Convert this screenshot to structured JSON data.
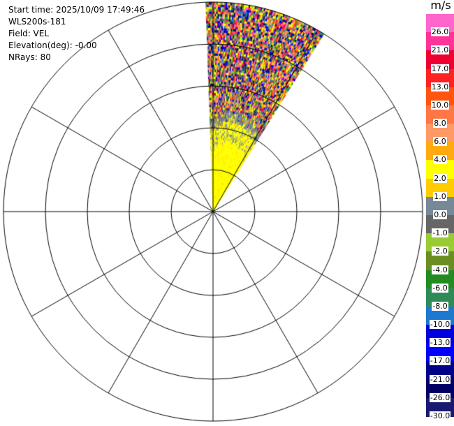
{
  "info": {
    "start_time": "Start time: 2025/10/09 17:49:46",
    "instrument": "WLS200s-181",
    "field": "Field: VEL",
    "elevation": "Elevation(deg): -0.00",
    "nrays": "NRays: 80"
  },
  "colorbar": {
    "unit": "m/s",
    "labels": [
      "26.0",
      "21.0",
      "17.0",
      "13.0",
      "10.0",
      "8.0",
      "6.0",
      "4.0",
      "2.0",
      "1.0",
      "0.0",
      "-1.0",
      "-2.0",
      "-4.0",
      "-6.0",
      "-8.0",
      "-10.0",
      "-13.0",
      "-17.0",
      "-21.0",
      "-26.0",
      "-30.0"
    ],
    "colors": [
      "#ff66cc",
      "#ff3399",
      "#ee0033",
      "#ff2222",
      "#ff5511",
      "#ff7744",
      "#ff9966",
      "#ffaa11",
      "#ffff00",
      "#ffcc00",
      "#778899",
      "#666666",
      "#99cc33",
      "#6b8e23",
      "#228b22",
      "#2e8b57",
      "#1e78d0",
      "#0000dd",
      "#0000ff",
      "#000088",
      "#000066",
      "#191970"
    ]
  },
  "chart_data": {
    "type": "heatmap",
    "subtype": "polar radar PPI scan",
    "field": "VEL",
    "units": "m/s",
    "n_rays": 80,
    "elevation_deg": 0.0,
    "azimuth_sector_deg": [
      -2,
      32
    ],
    "range_rings": 5,
    "radial_lines_every_deg": 30,
    "regions": [
      {
        "range_fraction": [
          0.0,
          0.44
        ],
        "dominant_value_ms": 2.0,
        "description_color": "yellow"
      },
      {
        "range_fraction": [
          0.38,
          0.48
        ],
        "dominant_value_ms": 0.0,
        "description_color": "gray"
      },
      {
        "range_fraction": [
          0.44,
          1.0
        ],
        "dominant_value_ms": "noise",
        "description_color": "mixed"
      }
    ],
    "grid": true
  }
}
